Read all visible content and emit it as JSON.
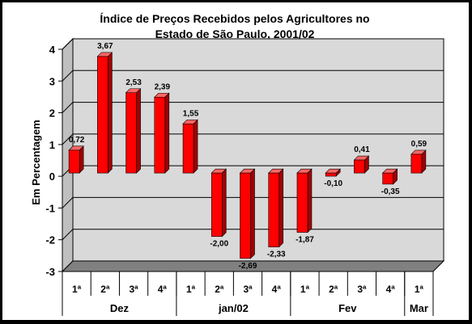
{
  "chart_data": {
    "type": "bar",
    "title": [
      "Índice de Preços Recebidos pelos Agricultores no",
      "Estado de São Paulo, 2001/02"
    ],
    "ylabel": "Em Percentagem",
    "ylim": [
      -3,
      4
    ],
    "yticks": [
      4,
      3,
      2,
      1,
      0,
      -1,
      -2,
      -3
    ],
    "categories": [
      "1ª",
      "2ª",
      "3ª",
      "4ª",
      "1ª",
      "2ª",
      "3ª",
      "4ª",
      "1ª",
      "2ª",
      "3ª",
      "4ª",
      "1ª"
    ],
    "groups": [
      {
        "label": "Dez",
        "count": 4
      },
      {
        "label": "jan/02",
        "count": 4
      },
      {
        "label": "Fev",
        "count": 4
      },
      {
        "label": "Mar",
        "count": 1
      }
    ],
    "values": [
      0.72,
      3.67,
      2.53,
      2.39,
      1.55,
      -2.0,
      -2.69,
      -2.33,
      -1.87,
      -0.1,
      0.41,
      -0.35,
      0.59
    ],
    "data_labels": [
      "0,72",
      "3,67",
      "2,53",
      "2,39",
      "1,55",
      "-2,00",
      "-2,69",
      "-2,33",
      "-1,87",
      "-0,10",
      "0,41",
      "-0,35",
      "0,59"
    ],
    "grid": true,
    "legend": false,
    "colors": {
      "bar": "#ff0000",
      "bar_side": "#a00000",
      "bar_top": "#ff6666",
      "plot_bg": "#d9d9d9",
      "floor": "#808080"
    }
  }
}
